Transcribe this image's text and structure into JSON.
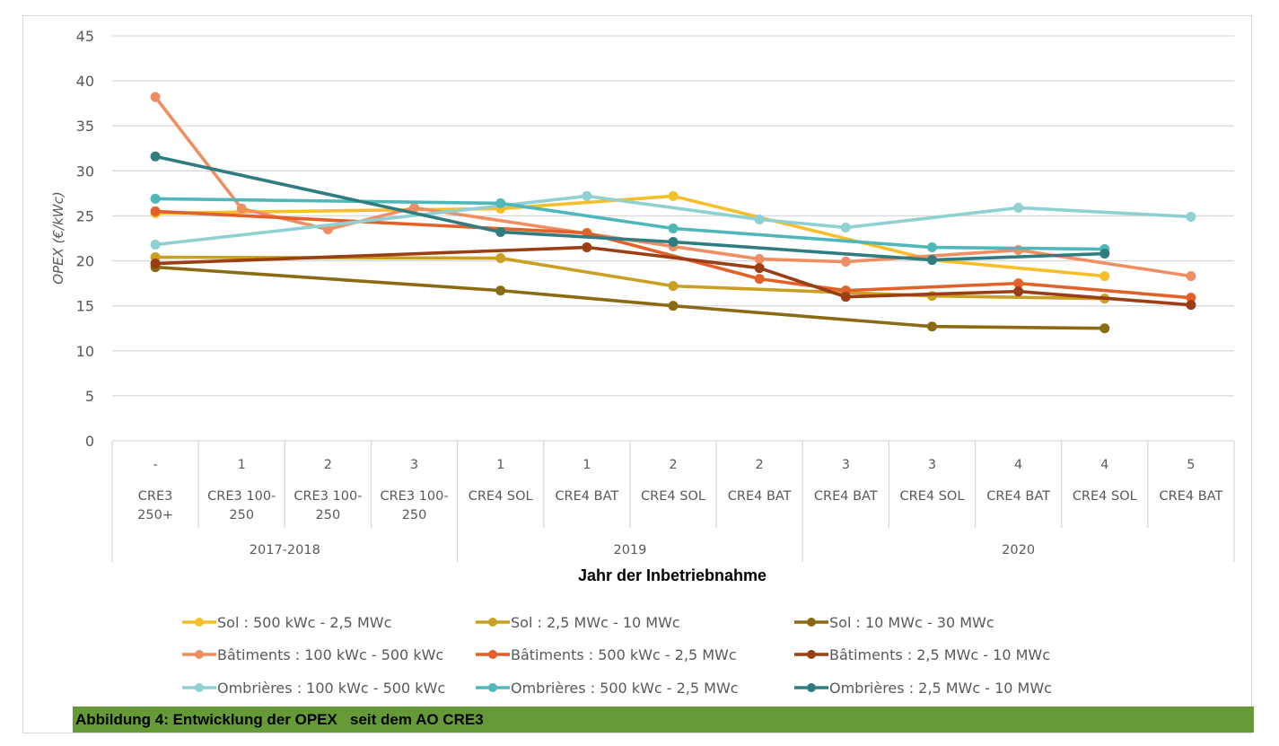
{
  "chart_data": {
    "type": "line",
    "title": "",
    "xlabel": "Jahr der Inbetriebnahme",
    "ylabel": "OPEX (€/kWc)",
    "ylim": [
      0,
      45
    ],
    "yticks": [
      0,
      5,
      10,
      15,
      20,
      25,
      30,
      35,
      40,
      45
    ],
    "grid": true,
    "legend_position": "bottom",
    "categories": [
      {
        "round": "-",
        "label": "CRE3 250+",
        "year": "2017-2018"
      },
      {
        "round": "1",
        "label": "CRE3 100-250",
        "year": "2017-2018"
      },
      {
        "round": "2",
        "label": "CRE3 100-250",
        "year": "2017-2018"
      },
      {
        "round": "3",
        "label": "CRE3 100-250",
        "year": "2017-2018"
      },
      {
        "round": "1",
        "label": "CRE4 SOL",
        "year": "2019"
      },
      {
        "round": "1",
        "label": "CRE4 BAT",
        "year": "2019"
      },
      {
        "round": "2",
        "label": "CRE4 SOL",
        "year": "2019"
      },
      {
        "round": "2",
        "label": "CRE4 BAT",
        "year": "2019"
      },
      {
        "round": "3",
        "label": "CRE4 BAT",
        "year": "2020"
      },
      {
        "round": "3",
        "label": "CRE4 SOL",
        "year": "2020"
      },
      {
        "round": "4",
        "label": "CRE4 BAT",
        "year": "2020"
      },
      {
        "round": "4",
        "label": "CRE4 SOL",
        "year": "2020"
      },
      {
        "round": "5",
        "label": "CRE4 BAT",
        "year": "2020"
      }
    ],
    "category_lines": [
      [
        "CRE3",
        "250+"
      ],
      [
        "CRE3 100-",
        "250"
      ],
      [
        "CRE3 100-",
        "250"
      ],
      [
        "CRE3 100-",
        "250"
      ],
      [
        "CRE4 SOL"
      ],
      [
        "CRE4 BAT"
      ],
      [
        "CRE4 SOL"
      ],
      [
        "CRE4 BAT"
      ],
      [
        "CRE4 BAT"
      ],
      [
        "CRE4 SOL"
      ],
      [
        "CRE4 BAT"
      ],
      [
        "CRE4 SOL"
      ],
      [
        "CRE4 BAT"
      ]
    ],
    "year_groups": [
      {
        "label": "2017-2018",
        "start": 0,
        "end": 3
      },
      {
        "label": "2019",
        "start": 4,
        "end": 7
      },
      {
        "label": "2020",
        "start": 8,
        "end": 12
      }
    ],
    "series": [
      {
        "name": "Sol : 500 kWc - 2,5 MWc",
        "color": "#f6bf2a",
        "values": [
          25.3,
          null,
          null,
          null,
          25.8,
          null,
          27.2,
          null,
          null,
          20.1,
          null,
          18.3,
          null
        ]
      },
      {
        "name": "Sol : 2,5 MWc - 10 MWc",
        "color": "#c9a024",
        "values": [
          20.4,
          null,
          null,
          null,
          20.3,
          null,
          17.2,
          null,
          null,
          16.1,
          null,
          15.8,
          null
        ]
      },
      {
        "name": "Sol : 10 MWc - 30 MWc",
        "color": "#8a6a12",
        "values": [
          19.3,
          null,
          null,
          null,
          16.7,
          null,
          15.0,
          null,
          null,
          12.7,
          null,
          12.5,
          null
        ]
      },
      {
        "name": "Bâtiments : 100 kWc - 500 kWc",
        "color": "#ef8e62",
        "values": [
          38.2,
          25.8,
          23.5,
          25.9,
          null,
          null,
          21.6,
          20.2,
          19.9,
          null,
          21.2,
          null,
          18.3
        ]
      },
      {
        "name": "Bâtiments : 500 kWc - 2,5 MWc",
        "color": "#e2612a",
        "values": [
          25.5,
          null,
          null,
          null,
          null,
          23.1,
          null,
          18.0,
          16.7,
          null,
          17.5,
          null,
          15.9
        ]
      },
      {
        "name": "Bâtiments : 2,5 MWc - 10 MWc",
        "color": "#9b3e14",
        "values": [
          19.7,
          null,
          null,
          null,
          null,
          21.5,
          null,
          19.2,
          16.0,
          null,
          16.6,
          null,
          15.1
        ]
      },
      {
        "name": "Ombrières : 100 kWc - 500 kWc",
        "color": "#8fd0d2",
        "values": [
          21.8,
          null,
          null,
          null,
          null,
          27.2,
          null,
          24.6,
          23.7,
          null,
          25.9,
          null,
          24.9
        ]
      },
      {
        "name": "Ombrières : 500 kWc - 2,5 MWc",
        "color": "#4fb7ba",
        "values": [
          26.9,
          null,
          null,
          null,
          26.4,
          null,
          23.6,
          null,
          null,
          21.5,
          null,
          21.3,
          null
        ]
      },
      {
        "name": "Ombrières : 2,5 MWc - 10 MWc",
        "color": "#2f7d80",
        "values": [
          31.6,
          null,
          null,
          null,
          23.2,
          null,
          22.1,
          null,
          null,
          20.1,
          null,
          20.8,
          null
        ]
      }
    ]
  },
  "caption": "Abbildung 4: Entwicklung der OPEX   seit dem AO CRE3",
  "colors": {
    "caption_background": "#659a37",
    "gridline": "#d9d9d9",
    "axis_text": "#595959"
  }
}
